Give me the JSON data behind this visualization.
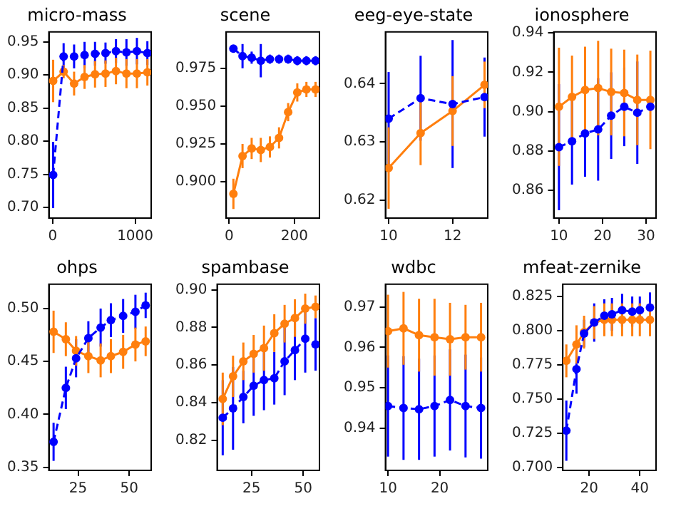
{
  "chart_data": [
    {
      "type": "line",
      "title": "micro-mass",
      "x": [
        5,
        132,
        259,
        386,
        513,
        640,
        767,
        894,
        1021,
        1148
      ],
      "xlim": [
        -47,
        1194
      ],
      "xticks": [
        0,
        1000
      ],
      "ylim": [
        0.684,
        0.965
      ],
      "yticks": [
        {
          "value": 0.7,
          "label": "0.70"
        },
        0.75,
        {
          "value": 0.8,
          "label": "0.80"
        },
        0.85,
        {
          "value": 0.9,
          "label": "0.90"
        },
        0.95
      ],
      "grid": false,
      "legend": false,
      "marker": "circle",
      "series": [
        {
          "color": "#0000ff",
          "line_style": "dashed",
          "values": [
            0.749,
            0.928,
            0.928,
            0.93,
            0.932,
            0.933,
            0.936,
            0.934,
            0.936,
            0.933
          ],
          "errors": [
            0.05,
            0.02,
            0.018,
            0.02,
            0.018,
            0.016,
            0.018,
            0.02,
            0.02,
            0.018
          ]
        },
        {
          "color": "#ff7f0e",
          "line_style": "solid",
          "values": [
            0.891,
            0.905,
            0.887,
            0.897,
            0.901,
            0.902,
            0.906,
            0.902,
            0.902,
            0.904
          ],
          "errors": [
            0.032,
            0.01,
            0.018,
            0.018,
            0.02,
            0.02,
            0.02,
            0.022,
            0.022,
            0.02
          ]
        }
      ]
    },
    {
      "type": "line",
      "title": "scene",
      "x": [
        13,
        41,
        69,
        97,
        125,
        153,
        181,
        209,
        237,
        265
      ],
      "xlim": [
        -9,
        277
      ],
      "xticks": [
        0,
        200
      ],
      "ylim": [
        0.876,
        0.999
      ],
      "yticks": [
        {
          "value": 0.9,
          "label": "0.900"
        },
        0.925,
        {
          "value": 0.95,
          "label": "0.950"
        },
        0.975
      ],
      "grid": false,
      "legend": false,
      "marker": "circle",
      "series": [
        {
          "color": "#0000ff",
          "line_style": "dashed",
          "values": [
            0.988,
            0.983,
            0.982,
            0.98,
            0.981,
            0.981,
            0.981,
            0.98,
            0.98,
            0.98
          ],
          "errors": [
            0.002,
            0.008,
            0.004,
            0.011,
            0.003,
            0.003,
            0.003,
            0.003,
            0.003,
            0.003
          ]
        },
        {
          "color": "#ff7f0e",
          "line_style": "solid",
          "values": [
            0.892,
            0.917,
            0.922,
            0.921,
            0.923,
            0.929,
            0.946,
            0.959,
            0.961,
            0.961
          ],
          "errors": [
            0.01,
            0.008,
            0.007,
            0.008,
            0.007,
            0.007,
            0.006,
            0.006,
            0.005,
            0.005
          ]
        }
      ]
    },
    {
      "type": "line",
      "title": "eeg-eye-state",
      "x": [
        10,
        11,
        12,
        13
      ],
      "xlim": [
        9.9,
        13.1
      ],
      "xticks": [
        10,
        12
      ],
      "ylim": [
        0.6169,
        0.6489
      ],
      "yticks": [
        0.62,
        0.63,
        0.64
      ],
      "grid": false,
      "legend": false,
      "marker": "circle",
      "series": [
        {
          "color": "#0000ff",
          "line_style": "dashed",
          "values": [
            0.634,
            0.6375,
            0.6365,
            0.6377
          ],
          "errors": [
            0.008,
            0.0073,
            0.011,
            0.0068
          ]
        },
        {
          "color": "#ff7f0e",
          "line_style": "solid",
          "values": [
            0.6255,
            0.6315,
            0.6353,
            0.6398
          ],
          "errors": [
            0.007,
            0.0055,
            0.006,
            0.004
          ]
        }
      ]
    },
    {
      "type": "line",
      "title": "ionosphere",
      "x": [
        10,
        13,
        16,
        19,
        22,
        25,
        28,
        31
      ],
      "xlim": [
        8.8,
        32.3
      ],
      "xticks": [
        10,
        20,
        30
      ],
      "ylim": [
        0.846,
        0.9405
      ],
      "yticks": [
        0.86,
        0.88,
        {
          "value": 0.9,
          "label": "0.90"
        },
        0.92,
        0.94
      ],
      "grid": false,
      "legend": false,
      "marker": "circle",
      "series": [
        {
          "color": "#0000ff",
          "line_style": "dashed",
          "values": [
            0.882,
            0.885,
            0.889,
            0.891,
            0.898,
            0.9025,
            0.8995,
            0.9025
          ],
          "errors": [
            0.032,
            0.022,
            0.022,
            0.026,
            0.022,
            0.02,
            0.026,
            null
          ]
        },
        {
          "color": "#ff7f0e",
          "line_style": "solid",
          "values": [
            0.9025,
            0.9075,
            0.911,
            0.912,
            0.91,
            0.9095,
            0.906,
            0.906
          ],
          "errors": [
            0.03,
            0.021,
            0.022,
            0.024,
            0.022,
            0.022,
            0.023,
            0.025
          ]
        }
      ]
    },
    {
      "type": "line",
      "title": "ohps",
      "x": [
        13,
        19,
        24,
        30,
        36,
        41,
        47,
        53,
        58
      ],
      "xlim": [
        10.7,
        60.7
      ],
      "xticks": [
        25,
        50
      ],
      "ylim": [
        0.347,
        0.523
      ],
      "yticks": [
        0.35,
        {
          "value": 0.4,
          "label": "0.40"
        },
        0.45,
        {
          "value": 0.5,
          "label": "0.50"
        }
      ],
      "grid": false,
      "legend": false,
      "marker": "circle",
      "series": [
        {
          "color": "#0000ff",
          "line_style": "dashed",
          "values": [
            0.374,
            0.425,
            0.453,
            0.472,
            0.482,
            0.489,
            0.493,
            0.497,
            0.503
          ],
          "errors": [
            0.018,
            0.02,
            0.018,
            0.016,
            0.018,
            0.016,
            0.016,
            0.016,
            0.012
          ]
        },
        {
          "color": "#ff7f0e",
          "line_style": "solid",
          "values": [
            0.478,
            0.471,
            0.46,
            0.455,
            0.451,
            0.455,
            0.459,
            0.466,
            0.469
          ],
          "errors": [
            0.02,
            0.016,
            0.014,
            0.016,
            0.016,
            0.016,
            0.016,
            0.016,
            0.014
          ]
        }
      ]
    },
    {
      "type": "line",
      "title": "spambase",
      "x": [
        11,
        16,
        21,
        26,
        31,
        36,
        41,
        46,
        51,
        56
      ],
      "xlim": [
        8.3,
        57.9
      ],
      "xticks": [
        25,
        50
      ],
      "ylim": [
        0.804,
        0.903
      ],
      "yticks": [
        0.82,
        0.84,
        0.86,
        0.88,
        {
          "value": 0.9,
          "label": "0.90"
        }
      ],
      "grid": false,
      "legend": false,
      "marker": "circle",
      "series": [
        {
          "color": "#0000ff",
          "line_style": "dashed",
          "values": [
            0.832,
            0.837,
            0.843,
            0.849,
            0.852,
            0.853,
            0.862,
            0.868,
            0.874,
            0.871
          ],
          "errors": [
            0.02,
            0.022,
            0.014,
            0.016,
            0.016,
            0.014,
            0.018,
            0.016,
            0.018,
            0.014
          ]
        },
        {
          "color": "#ff7f0e",
          "line_style": "solid",
          "values": [
            0.842,
            0.854,
            0.862,
            0.866,
            0.869,
            0.877,
            0.882,
            0.885,
            0.89,
            0.891
          ],
          "errors": [
            0.014,
            0.011,
            0.01,
            0.01,
            0.012,
            0.01,
            0.01,
            0.01,
            0.008,
            0.006
          ]
        }
      ]
    },
    {
      "type": "line",
      "title": "wdbc",
      "x": [
        10,
        13,
        16,
        19,
        22,
        25,
        28
      ],
      "xlim": [
        9.5,
        29.3
      ],
      "xticks": [
        10,
        20
      ],
      "ylim": [
        0.9296,
        0.9756
      ],
      "yticks": [
        0.94,
        0.95,
        0.96,
        0.97
      ],
      "grid": false,
      "legend": false,
      "marker": "circle",
      "series": [
        {
          "color": "#0000ff",
          "line_style": "dashed",
          "values": [
            0.9455,
            0.945,
            0.9447,
            0.9455,
            0.947,
            0.9455,
            0.945
          ],
          "errors": [
            0.0125,
            0.0128,
            0.0125,
            0.0125,
            0.0125,
            0.0127,
            0.0125
          ]
        },
        {
          "color": "#ff7f0e",
          "line_style": "solid",
          "values": [
            0.964,
            0.9647,
            0.963,
            0.9625,
            0.962,
            0.9625,
            0.9625
          ],
          "errors": [
            0.009,
            0.009,
            0.009,
            0.0095,
            0.009,
            0.008,
            0.0085
          ]
        }
      ]
    },
    {
      "type": "line",
      "title": "mfeat-zernike",
      "x": [
        11,
        15,
        18,
        22,
        26,
        29,
        33,
        37,
        40,
        44
      ],
      "xlim": [
        9.6,
        46.4
      ],
      "xticks": [
        20,
        40
      ],
      "ylim": [
        0.698,
        0.834
      ],
      "yticks": [
        {
          "value": 0.7,
          "label": "0.700"
        },
        0.725,
        {
          "value": 0.75,
          "label": "0.750"
        },
        0.775,
        {
          "value": 0.8,
          "label": "0.800"
        },
        0.825
      ],
      "grid": false,
      "legend": false,
      "marker": "circle",
      "series": [
        {
          "color": "#0000ff",
          "line_style": "dashed",
          "values": [
            0.727,
            0.772,
            0.798,
            0.806,
            0.811,
            0.812,
            0.815,
            0.814,
            0.815,
            0.817
          ],
          "errors": [
            0.022,
            0.018,
            0.01,
            0.014,
            0.012,
            0.012,
            0.012,
            0.011,
            0.01,
            0.011
          ]
        },
        {
          "color": "#ff7f0e",
          "line_style": "solid",
          "values": [
            0.778,
            0.79,
            0.799,
            0.806,
            0.808,
            0.808,
            0.808,
            0.808,
            0.808,
            0.808
          ],
          "errors": [
            0.012,
            0.014,
            0.012,
            0.012,
            0.012,
            0.012,
            0.012,
            0.012,
            0.012,
            0.012
          ]
        }
      ]
    }
  ]
}
